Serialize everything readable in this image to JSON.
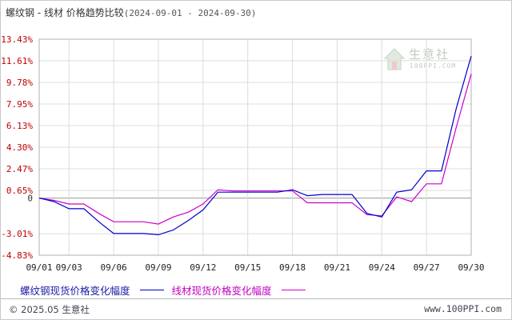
{
  "header": {
    "title": "螺纹钢 - 线材 价格趋势比较",
    "date_range": "(2024-09-01 - 2024-09-30)"
  },
  "watermark": {
    "name": "生意社",
    "url": "100PPI.COM"
  },
  "chart_data": {
    "type": "line",
    "x": [
      "09/01",
      "09/02",
      "09/03",
      "09/04",
      "09/05",
      "09/06",
      "09/07",
      "09/08",
      "09/09",
      "09/10",
      "09/11",
      "09/12",
      "09/13",
      "09/14",
      "09/15",
      "09/16",
      "09/17",
      "09/18",
      "09/19",
      "09/20",
      "09/21",
      "09/22",
      "09/23",
      "09/24",
      "09/25",
      "09/26",
      "09/27",
      "09/28",
      "09/29",
      "09/30"
    ],
    "x_ticks": [
      "09/01",
      "09/03",
      "09/06",
      "09/09",
      "09/12",
      "09/15",
      "09/18",
      "09/21",
      "09/24",
      "09/27",
      "09/30"
    ],
    "y_ticks": [
      "13.43%",
      "11.61%",
      "9.78%",
      "7.95%",
      "6.13%",
      "4.30%",
      "2.47%",
      "0.65%",
      "0",
      "-3.01%",
      "-4.83%"
    ],
    "ylim": [
      -4.83,
      13.43
    ],
    "grid": true,
    "legend_position": "bottom",
    "series": [
      {
        "name": "螺纹钢现货价格变化幅度",
        "color": "#0000cc",
        "values": [
          0,
          -0.3,
          -0.9,
          -0.9,
          -2.0,
          -3.0,
          -3.0,
          -3.0,
          -3.1,
          -2.7,
          -1.9,
          -1.0,
          0.5,
          0.5,
          0.5,
          0.5,
          0.5,
          0.7,
          0.2,
          0.3,
          0.3,
          0.3,
          -1.3,
          -1.6,
          0.5,
          0.7,
          2.3,
          2.3,
          7.6,
          12.0
        ]
      },
      {
        "name": "线材现货价格变化幅度",
        "color": "#cc00cc",
        "values": [
          0,
          -0.2,
          -0.5,
          -0.5,
          -1.3,
          -2.0,
          -2.0,
          -2.0,
          -2.2,
          -1.6,
          -1.2,
          -0.5,
          0.7,
          0.6,
          0.6,
          0.6,
          0.6,
          0.6,
          -0.4,
          -0.4,
          -0.4,
          -0.4,
          -1.4,
          -1.5,
          0.1,
          -0.3,
          1.2,
          1.2,
          6.0,
          10.5
        ]
      }
    ]
  },
  "footer": {
    "copyright": "© 2025.05 生意社",
    "site": "www.100PPI.com"
  }
}
